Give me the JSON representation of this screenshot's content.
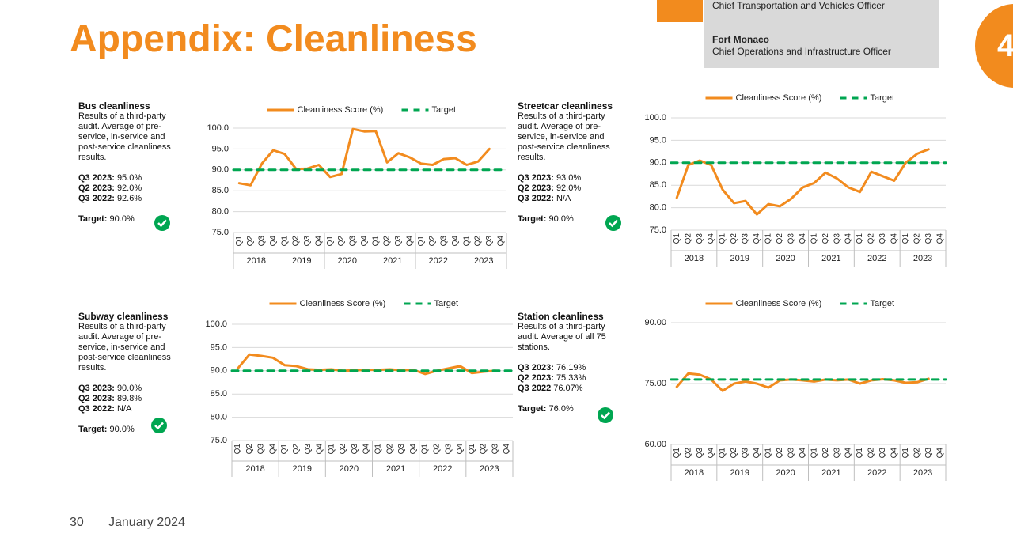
{
  "header": {
    "title": "Appendix: Cleanliness",
    "contacts": [
      "Chief Transportation and Vehicles Officer",
      "Fort Monaco",
      "Chief Operations and Infrastructure Officer"
    ],
    "badge": "4"
  },
  "footer": {
    "page": "30",
    "date": "January 2024"
  },
  "panels": [
    {
      "title": "Bus cleanliness",
      "description": "Results of a third-party audit. Average of pre-service, in-service and post-service cleanliness results.",
      "stats": [
        {
          "label": "Q3 2023:",
          "value": "95.0%"
        },
        {
          "label": "Q2 2023:",
          "value": "92.0%"
        },
        {
          "label": "Q3 2022:",
          "value": "92.6%"
        }
      ],
      "target_label": "Target:",
      "target_value": "90.0%"
    },
    {
      "title": "Streetcar cleanliness",
      "description": "Results of a third-party audit. Average of pre-service, in-service and post-service cleanliness results.",
      "stats": [
        {
          "label": "Q3 2023:",
          "value": "93.0%"
        },
        {
          "label": "Q2 2023:",
          "value": "92.0%"
        },
        {
          "label": "Q3 2022:",
          "value": "N/A"
        }
      ],
      "target_label": "Target:",
      "target_value": "90.0%"
    },
    {
      "title": "Subway cleanliness",
      "description": "Results of a third-party audit. Average of pre-service, in-service and post-service cleanliness results.",
      "stats": [
        {
          "label": "Q3 2023:",
          "value": "90.0%"
        },
        {
          "label": "Q2 2023:",
          "value": "89.8%"
        },
        {
          "label": "Q3 2022:",
          "value": "N/A"
        }
      ],
      "target_label": "Target:",
      "target_value": "90.0%"
    },
    {
      "title": "Station cleanliness",
      "description": "Results of a third-party audit. Average of all 75 stations.",
      "stats": [
        {
          "label": "Q3 2023:",
          "value": "76.19%"
        },
        {
          "label": "Q2 2023:",
          "value": "75.33%"
        },
        {
          "label": "Q3 2022",
          "value": "76.07%"
        }
      ],
      "target_label": "Target:",
      "target_value": "76.0%"
    }
  ],
  "chart_data": [
    {
      "type": "line",
      "grid": true,
      "categories": [
        "Q1",
        "Q2",
        "Q3",
        "Q4",
        "Q1",
        "Q2",
        "Q3",
        "Q4",
        "Q1",
        "Q2",
        "Q3",
        "Q4",
        "Q1",
        "Q2",
        "Q3",
        "Q4",
        "Q1",
        "Q2",
        "Q3",
        "Q4",
        "Q1",
        "Q2",
        "Q3",
        "Q4"
      ],
      "x_groups": [
        "2018",
        "2019",
        "2020",
        "2021",
        "2022",
        "2023"
      ],
      "ylim": [
        75,
        100
      ],
      "yticks": [
        {
          "value": 75,
          "label": "75.0"
        },
        {
          "value": 80,
          "label": "80.0"
        },
        {
          "value": 85,
          "label": "85.0"
        },
        {
          "value": 90,
          "label": "90.0"
        },
        {
          "value": 95,
          "label": "95.0"
        },
        {
          "value": 100,
          "label": "100.0"
        }
      ],
      "series": [
        {
          "name": "Cleanliness Score (%)",
          "color": "#f28b1e",
          "values": [
            86.8,
            86.3,
            91.5,
            94.7,
            93.8,
            90.2,
            90.3,
            91.2,
            88.3,
            89.0,
            99.8,
            99.2,
            99.3,
            91.8,
            94.0,
            93.0,
            91.5,
            91.2,
            92.6,
            92.8,
            91.2,
            92.0,
            95.0,
            null
          ]
        },
        {
          "name": "Target",
          "color": "#00a651",
          "dashed": true,
          "values": [
            90,
            90,
            90,
            90,
            90,
            90,
            90,
            90,
            90,
            90,
            90,
            90,
            90,
            90,
            90,
            90,
            90,
            90,
            90,
            90,
            90,
            90,
            90,
            90
          ]
        }
      ]
    },
    {
      "type": "line",
      "grid": true,
      "categories": [
        "Q1",
        "Q2",
        "Q3",
        "Q4",
        "Q1",
        "Q2",
        "Q3",
        "Q4",
        "Q1",
        "Q2",
        "Q3",
        "Q4",
        "Q1",
        "Q2",
        "Q3",
        "Q4",
        "Q1",
        "Q2",
        "Q3",
        "Q4",
        "Q1",
        "Q2",
        "Q3",
        "Q4"
      ],
      "x_groups": [
        "2018",
        "2019",
        "2020",
        "2021",
        "2022",
        "2023"
      ],
      "ylim": [
        75,
        100
      ],
      "yticks": [
        {
          "value": 75,
          "label": "75.0"
        },
        {
          "value": 80,
          "label": "80.0"
        },
        {
          "value": 85,
          "label": "85.0"
        },
        {
          "value": 90,
          "label": "90.0"
        },
        {
          "value": 95,
          "label": "95.0"
        },
        {
          "value": 100,
          "label": "100.0"
        }
      ],
      "series": [
        {
          "name": "Cleanliness Score (%)",
          "color": "#f28b1e",
          "values": [
            82.2,
            89.5,
            90.5,
            89.5,
            84.0,
            81.0,
            81.5,
            78.5,
            80.8,
            80.3,
            82.0,
            84.5,
            85.5,
            87.8,
            86.5,
            84.5,
            83.5,
            88.0,
            87.0,
            86.0,
            90.0,
            92.0,
            93.0,
            null
          ]
        },
        {
          "name": "Target",
          "color": "#00a651",
          "dashed": true,
          "values": [
            90,
            90,
            90,
            90,
            90,
            90,
            90,
            90,
            90,
            90,
            90,
            90,
            90,
            90,
            90,
            90,
            90,
            90,
            90,
            90,
            90,
            90,
            90,
            90
          ]
        }
      ]
    },
    {
      "type": "line",
      "grid": true,
      "categories": [
        "Q1",
        "Q2",
        "Q3",
        "Q4",
        "Q1",
        "Q2",
        "Q3",
        "Q4",
        "Q1",
        "Q2",
        "Q3",
        "Q4",
        "Q1",
        "Q2",
        "Q3",
        "Q4",
        "Q1",
        "Q2",
        "Q3",
        "Q4",
        "Q1",
        "Q2",
        "Q3",
        "Q4"
      ],
      "x_groups": [
        "2018",
        "2019",
        "2020",
        "2021",
        "2022",
        "2023"
      ],
      "ylim": [
        75,
        100
      ],
      "yticks": [
        {
          "value": 75,
          "label": "75.0"
        },
        {
          "value": 80,
          "label": "80.0"
        },
        {
          "value": 85,
          "label": "85.0"
        },
        {
          "value": 90,
          "label": "90.0"
        },
        {
          "value": 95,
          "label": "95.0"
        },
        {
          "value": 100,
          "label": "100.0"
        }
      ],
      "series": [
        {
          "name": "Cleanliness Score (%)",
          "color": "#f28b1e",
          "values": [
            90.5,
            93.5,
            93.2,
            92.8,
            91.2,
            91.0,
            90.3,
            90.2,
            90.3,
            90.0,
            90.1,
            90.2,
            90.2,
            90.3,
            90.1,
            90.2,
            89.3,
            90.0,
            90.5,
            91.0,
            89.5,
            89.8,
            90.0,
            null
          ]
        },
        {
          "name": "Target",
          "color": "#00a651",
          "dashed": true,
          "values": [
            90,
            90,
            90,
            90,
            90,
            90,
            90,
            90,
            90,
            90,
            90,
            90,
            90,
            90,
            90,
            90,
            90,
            90,
            90,
            90,
            90,
            90,
            90,
            90
          ]
        }
      ]
    },
    {
      "type": "line",
      "grid": true,
      "categories": [
        "Q1",
        "Q2",
        "Q3",
        "Q4",
        "Q1",
        "Q2",
        "Q3",
        "Q4",
        "Q1",
        "Q2",
        "Q3",
        "Q4",
        "Q1",
        "Q2",
        "Q3",
        "Q4",
        "Q1",
        "Q2",
        "Q3",
        "Q4",
        "Q1",
        "Q2",
        "Q3",
        "Q4"
      ],
      "x_groups": [
        "2018",
        "2019",
        "2020",
        "2021",
        "2022",
        "2023"
      ],
      "ylim": [
        60,
        90
      ],
      "yticks": [
        {
          "value": 60,
          "label": "60.00"
        },
        {
          "value": 75,
          "label": "75.00"
        },
        {
          "value": 90,
          "label": "90.00"
        }
      ],
      "series": [
        {
          "name": "Cleanliness Score (%)",
          "color": "#f28b1e",
          "values": [
            74.2,
            77.5,
            77.2,
            76.0,
            73.2,
            75.0,
            75.5,
            75.0,
            74.0,
            75.8,
            76.0,
            75.8,
            75.5,
            76.0,
            75.8,
            76.0,
            75.0,
            75.8,
            76.07,
            75.8,
            75.2,
            75.33,
            76.19,
            null
          ]
        },
        {
          "name": "Target",
          "color": "#00a651",
          "dashed": true,
          "values": [
            76,
            76,
            76,
            76,
            76,
            76,
            76,
            76,
            76,
            76,
            76,
            76,
            76,
            76,
            76,
            76,
            76,
            76,
            76,
            76,
            76,
            76,
            76,
            76
          ]
        }
      ]
    }
  ]
}
